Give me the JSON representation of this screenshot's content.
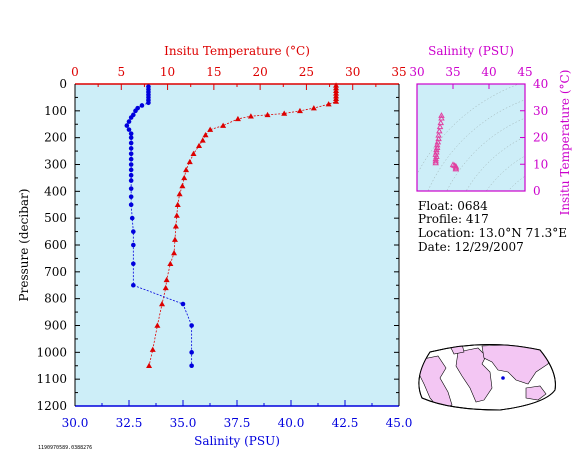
{
  "colors": {
    "plot_bg": "#cdeef8",
    "temperature": "#dd0000",
    "salinity": "#0000dd",
    "inset_axis": "#cc00cc",
    "inset_markers": "#e040a0",
    "map_land": "#f3c6f3",
    "map_ocean": "#ffffff"
  },
  "chart_data": [
    {
      "type": "line",
      "top_axis_label": "Insitu Temperature (°C)",
      "bottom_axis_label": "Salinity (PSU)",
      "left_axis_label": "Pressure (decibar)",
      "top_axis": {
        "range": [
          0,
          35
        ],
        "ticks": [
          "0",
          "5",
          "10",
          "15",
          "20",
          "25",
          "30",
          "35"
        ]
      },
      "bottom_axis": {
        "range": [
          30.0,
          45.0
        ],
        "ticks": [
          "30.0",
          "32.5",
          "35.0",
          "37.5",
          "40.0",
          "42.5",
          "45.0"
        ]
      },
      "y_axis": {
        "range": [
          0,
          1200
        ],
        "inverted": true,
        "ticks": [
          "0",
          "100",
          "200",
          "300",
          "400",
          "500",
          "600",
          "700",
          "800",
          "900",
          "1000",
          "1100",
          "1200"
        ]
      },
      "grid": false,
      "series": [
        {
          "name": "Insitu Temperature",
          "axis": "top",
          "marker": "triangle",
          "points": [
            [
              28.2,
              5
            ],
            [
              28.2,
              15
            ],
            [
              28.2,
              25
            ],
            [
              28.2,
              35
            ],
            [
              28.2,
              45
            ],
            [
              28.2,
              55
            ],
            [
              28.2,
              65
            ],
            [
              27.4,
              75
            ],
            [
              25.8,
              90
            ],
            [
              24.3,
              100
            ],
            [
              22.6,
              110
            ],
            [
              20.8,
              115
            ],
            [
              19.0,
              120
            ],
            [
              17.6,
              130
            ],
            [
              16.0,
              155
            ],
            [
              14.6,
              170
            ],
            [
              14.1,
              190
            ],
            [
              13.8,
              210
            ],
            [
              13.4,
              230
            ],
            [
              12.8,
              260
            ],
            [
              12.4,
              290
            ],
            [
              12.0,
              320
            ],
            [
              11.8,
              350
            ],
            [
              11.6,
              380
            ],
            [
              11.3,
              410
            ],
            [
              11.1,
              450
            ],
            [
              11.0,
              490
            ],
            [
              10.9,
              530
            ],
            [
              10.8,
              580
            ],
            [
              10.7,
              630
            ],
            [
              10.3,
              670
            ],
            [
              9.9,
              730
            ],
            [
              9.8,
              760
            ],
            [
              9.4,
              820
            ],
            [
              8.9,
              900
            ],
            [
              8.4,
              990
            ],
            [
              8.0,
              1050
            ]
          ]
        },
        {
          "name": "Salinity",
          "axis": "bottom",
          "marker": "circle",
          "points": [
            [
              33.4,
              10
            ],
            [
              33.4,
              20
            ],
            [
              33.4,
              30
            ],
            [
              33.4,
              40
            ],
            [
              33.4,
              50
            ],
            [
              33.4,
              60
            ],
            [
              33.4,
              70
            ],
            [
              33.1,
              80
            ],
            [
              32.9,
              90
            ],
            [
              32.8,
              100
            ],
            [
              32.7,
              115
            ],
            [
              32.6,
              125
            ],
            [
              32.5,
              140
            ],
            [
              32.4,
              155
            ],
            [
              32.5,
              170
            ],
            [
              32.6,
              185
            ],
            [
              32.6,
              200
            ],
            [
              32.6,
              220
            ],
            [
              32.6,
              240
            ],
            [
              32.6,
              260
            ],
            [
              32.6,
              280
            ],
            [
              32.6,
              300
            ],
            [
              32.6,
              320
            ],
            [
              32.6,
              340
            ],
            [
              32.6,
              360
            ],
            [
              32.6,
              390
            ],
            [
              32.6,
              420
            ],
            [
              32.6,
              450
            ],
            [
              32.65,
              500
            ],
            [
              32.7,
              550
            ],
            [
              32.7,
              600
            ],
            [
              32.7,
              670
            ],
            [
              32.7,
              750
            ],
            [
              35.0,
              820
            ],
            [
              35.4,
              900
            ],
            [
              35.4,
              1000
            ],
            [
              35.4,
              1050
            ]
          ]
        }
      ]
    },
    {
      "type": "scatter",
      "top_axis_label": "Salinity (PSU)",
      "right_axis_label": "Insitu Temperature (°C)",
      "x_axis": {
        "range": [
          30,
          45
        ],
        "ticks": [
          "30",
          "35",
          "40",
          "45"
        ]
      },
      "y_axis": {
        "range": [
          0,
          40
        ],
        "ticks": [
          "0",
          "10",
          "20",
          "30",
          "40"
        ]
      },
      "density_contours": true,
      "points": [
        [
          32.6,
          10.5
        ],
        [
          32.6,
          11.2
        ],
        [
          32.6,
          12.0
        ],
        [
          32.7,
          12.8
        ],
        [
          32.6,
          13.6
        ],
        [
          32.7,
          14.5
        ],
        [
          32.7,
          15.4
        ],
        [
          32.8,
          16.2
        ],
        [
          32.8,
          17.2
        ],
        [
          32.9,
          18.3
        ],
        [
          33.0,
          19.5
        ],
        [
          33.0,
          20.8
        ],
        [
          33.1,
          22.4
        ],
        [
          33.2,
          24.0
        ],
        [
          33.3,
          25.5
        ],
        [
          33.4,
          27.2
        ],
        [
          33.4,
          28.2
        ],
        [
          35.0,
          9.8
        ],
        [
          35.4,
          9.2
        ],
        [
          35.4,
          8.6
        ],
        [
          35.4,
          8.2
        ],
        [
          35.2,
          9.5
        ]
      ]
    }
  ],
  "float_info": {
    "float": "Float:  0684",
    "profile": "Profile:  417",
    "location": "Location:  13.0°N  71.3°E",
    "date": "Date:  12/29/2007"
  },
  "footer_code": "1190970589.0388276"
}
